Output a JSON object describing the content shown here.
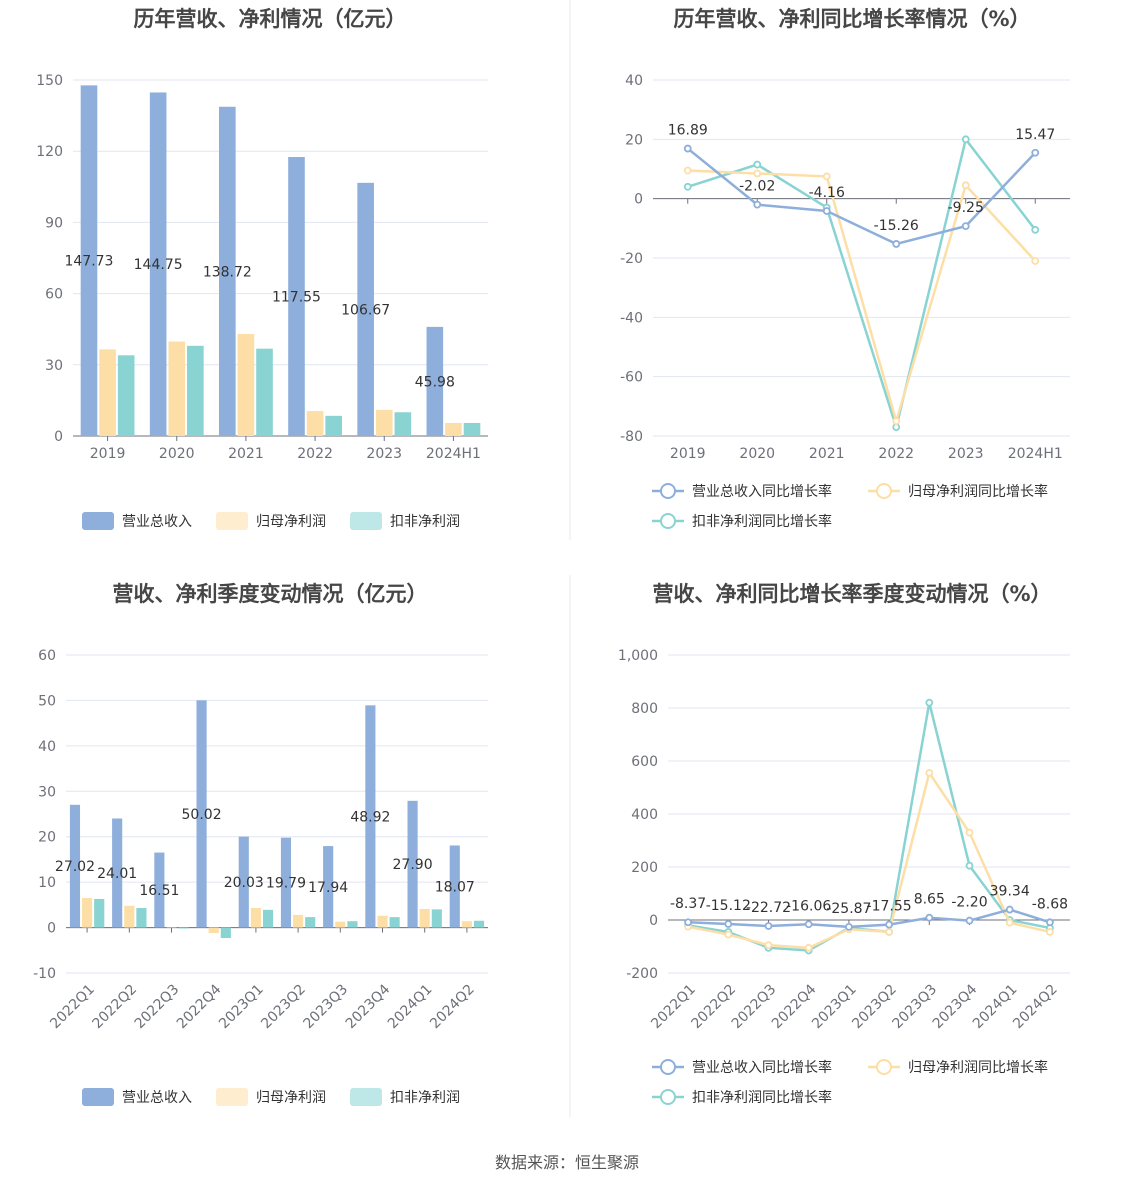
{
  "source": "数据来源：恒生聚源",
  "colors": {
    "revenue": "#8eaedb",
    "net": "#fddea6",
    "deducted": "#89d3d3",
    "grid": "#e0e6f1",
    "text": "#333333",
    "tick": "#6e7079"
  },
  "chart_data": [
    {
      "type": "bar",
      "title": "历年营收、净利情况（亿元）",
      "categories": [
        "2019",
        "2020",
        "2021",
        "2022",
        "2023",
        "2024H1"
      ],
      "yticks": [
        "150",
        "120",
        "90",
        "60",
        "30",
        "0"
      ],
      "ylim": [
        0,
        150
      ],
      "legend_position": "bottom",
      "series": [
        {
          "name": "营业总收入",
          "values": [
            147.73,
            144.75,
            138.72,
            117.55,
            106.67,
            45.98
          ],
          "labels": [
            "147.73",
            "144.75",
            "138.72",
            "117.55",
            "106.67",
            "45.98"
          ]
        },
        {
          "name": "归母净利润",
          "values": [
            36.5,
            39.8,
            43.0,
            10.5,
            11.0,
            5.5
          ]
        },
        {
          "name": "扣非净利润",
          "values": [
            34.0,
            38.0,
            36.8,
            8.5,
            10.0,
            5.5
          ]
        }
      ]
    },
    {
      "type": "line",
      "title": "历年营收、净利同比增长率情况（%）",
      "categories": [
        "2019",
        "2020",
        "2021",
        "2022",
        "2023",
        "2024H1"
      ],
      "yticks": [
        "40",
        "20",
        "0",
        "-20",
        "-40",
        "-60",
        "-80"
      ],
      "ylim": [
        -80,
        40
      ],
      "legend_position": "bottom",
      "series": [
        {
          "name": "营业总收入同比增长率",
          "values": [
            16.89,
            -2.02,
            -4.16,
            -15.26,
            -9.25,
            15.47
          ],
          "labels": [
            "16.89",
            "-2.02",
            "-4.16",
            "-15.26",
            "-9.25",
            "15.47"
          ]
        },
        {
          "name": "归母净利润同比增长率",
          "values": [
            9.5,
            8.5,
            7.5,
            -75,
            4.5,
            -21
          ]
        },
        {
          "name": "扣非净利润同比增长率",
          "values": [
            4.0,
            11.5,
            -3.0,
            -77,
            20,
            -10.5
          ]
        }
      ]
    },
    {
      "type": "bar",
      "title": "营收、净利季度变动情况（亿元）",
      "categories": [
        "2022Q1",
        "2022Q2",
        "2022Q3",
        "2022Q4",
        "2023Q1",
        "2023Q2",
        "2023Q3",
        "2023Q4",
        "2024Q1",
        "2024Q2"
      ],
      "yticks": [
        "60",
        "50",
        "40",
        "30",
        "20",
        "10",
        "0",
        "-10"
      ],
      "ylim": [
        -10,
        60
      ],
      "legend_position": "bottom",
      "series": [
        {
          "name": "营业总收入",
          "values": [
            27.02,
            24.01,
            16.51,
            50.02,
            20.03,
            19.79,
            17.94,
            48.92,
            27.9,
            18.07
          ],
          "labels": [
            "27.02",
            "24.01",
            "16.51",
            "50.02",
            "20.03",
            "19.79",
            "17.94",
            "48.92",
            "27.90",
            "18.07"
          ]
        },
        {
          "name": "归母净利润",
          "values": [
            6.5,
            4.8,
            0.1,
            -1.2,
            4.3,
            2.8,
            1.3,
            2.6,
            4.1,
            1.4
          ]
        },
        {
          "name": "扣非净利润",
          "values": [
            6.3,
            4.3,
            -0.2,
            -2.3,
            3.9,
            2.3,
            1.4,
            2.3,
            4.0,
            1.5
          ]
        }
      ]
    },
    {
      "type": "line",
      "title": "营收、净利同比增长率季度变动情况（%）",
      "categories": [
        "2022Q1",
        "2022Q2",
        "2022Q3",
        "2022Q4",
        "2023Q1",
        "2023Q2",
        "2023Q3",
        "2023Q4",
        "2024Q1",
        "2024Q2"
      ],
      "yticks": [
        "1,000",
        "800",
        "600",
        "400",
        "200",
        "0",
        "-200"
      ],
      "ylim": [
        -200,
        1000
      ],
      "legend_position": "bottom",
      "series": [
        {
          "name": "营业总收入同比增长率",
          "values": [
            -8.37,
            -15.12,
            -22.72,
            -16.06,
            -25.87,
            -17.55,
            8.65,
            -2.2,
            39.34,
            -8.68
          ],
          "labels": [
            "-8.37",
            "-15.12",
            "-22.72",
            "-16.06",
            "-25.87",
            "-17.55",
            "8.65",
            "-2.20",
            "39.34",
            "-8.68"
          ]
        },
        {
          "name": "归母净利润同比增长率",
          "values": [
            -25,
            -55,
            -95,
            -105,
            -35,
            -45,
            555,
            330,
            -10,
            -45
          ]
        },
        {
          "name": "扣非净利润同比增长率",
          "values": [
            -20,
            -45,
            -105,
            -115,
            -30,
            -45,
            820,
            205,
            0,
            -30
          ]
        }
      ]
    }
  ]
}
